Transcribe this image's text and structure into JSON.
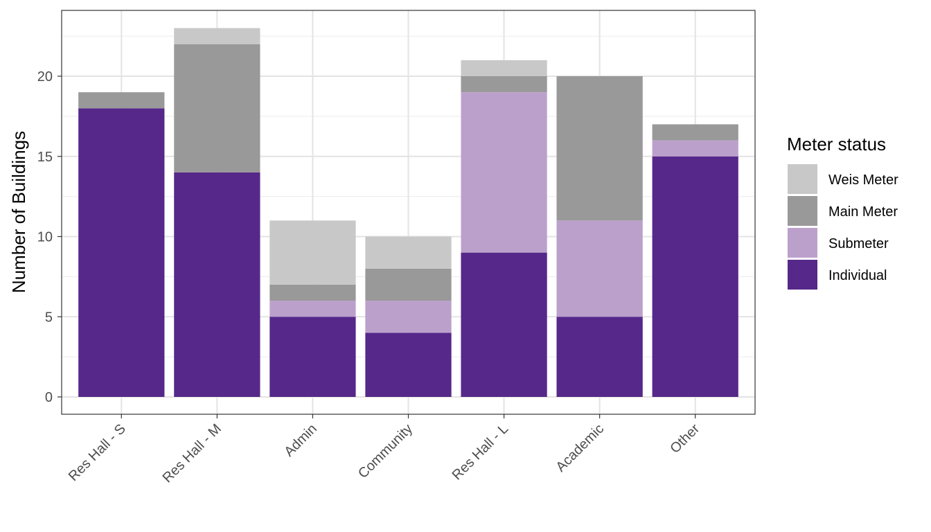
{
  "chart_data": {
    "type": "bar",
    "stacked": true,
    "title": "",
    "xlabel": "",
    "ylabel": "Number of Buildings",
    "ylim": [
      0,
      23.5
    ],
    "yticks": [
      0,
      5,
      10,
      15,
      20
    ],
    "grid": true,
    "categories": [
      "Res Hall - S",
      "Res Hall - M",
      "Admin",
      "Community",
      "Res Hall - L",
      "Academic",
      "Other"
    ],
    "series": [
      {
        "name": "Individual",
        "color": "#56288a",
        "values": [
          18,
          14,
          5,
          4,
          9,
          5,
          15
        ]
      },
      {
        "name": "Submeter",
        "color": "#bca0cc",
        "values": [
          0,
          0,
          1,
          2,
          10,
          6,
          1
        ]
      },
      {
        "name": "Main Meter",
        "color": "#999999",
        "values": [
          1,
          8,
          1,
          2,
          1,
          9,
          1
        ]
      },
      {
        "name": "Weis Meter",
        "color": "#c8c8c8",
        "values": [
          0,
          1,
          4,
          2,
          1,
          0,
          0
        ]
      }
    ],
    "legend": {
      "title": "Meter status",
      "placement": "right",
      "order": [
        "Weis Meter",
        "Main Meter",
        "Submeter",
        "Individual"
      ]
    }
  }
}
